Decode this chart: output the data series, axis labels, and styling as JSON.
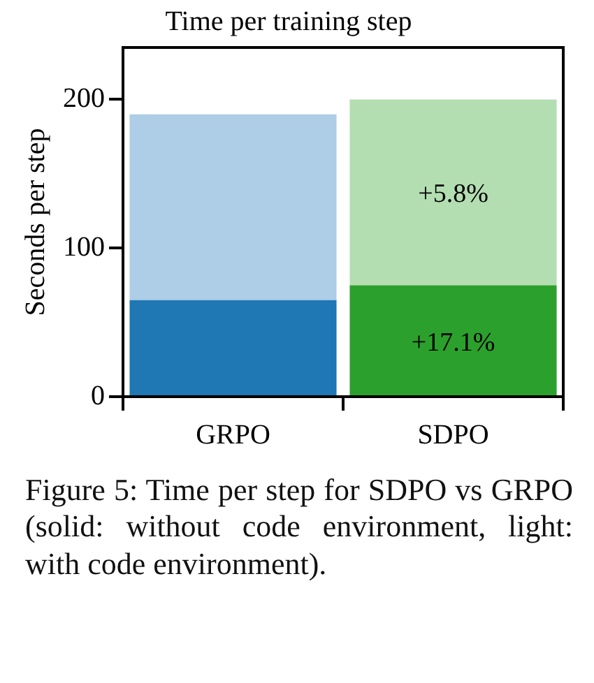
{
  "chart_data": {
    "type": "bar",
    "title": "Time per training step",
    "ylabel": "Seconds per step",
    "categories": [
      "GRPO",
      "SDPO"
    ],
    "stacked": true,
    "series": [
      {
        "colors": [
          "#1f77b4",
          "#2ca02c"
        ],
        "values": [
          65,
          75
        ]
      },
      {
        "colors": [
          "#aecde6",
          "#b3deb1"
        ],
        "values": [
          125,
          125
        ]
      }
    ],
    "ylim": [
      0,
      235
    ],
    "yticks": [
      0,
      100,
      200
    ],
    "grid": false,
    "legend": false,
    "annotations": [
      "+17.1%",
      "+5.8%",
      "Figure 5: Time per step for SDPO vs GRPO (solid: without code environment, light: with code environment)."
    ]
  }
}
